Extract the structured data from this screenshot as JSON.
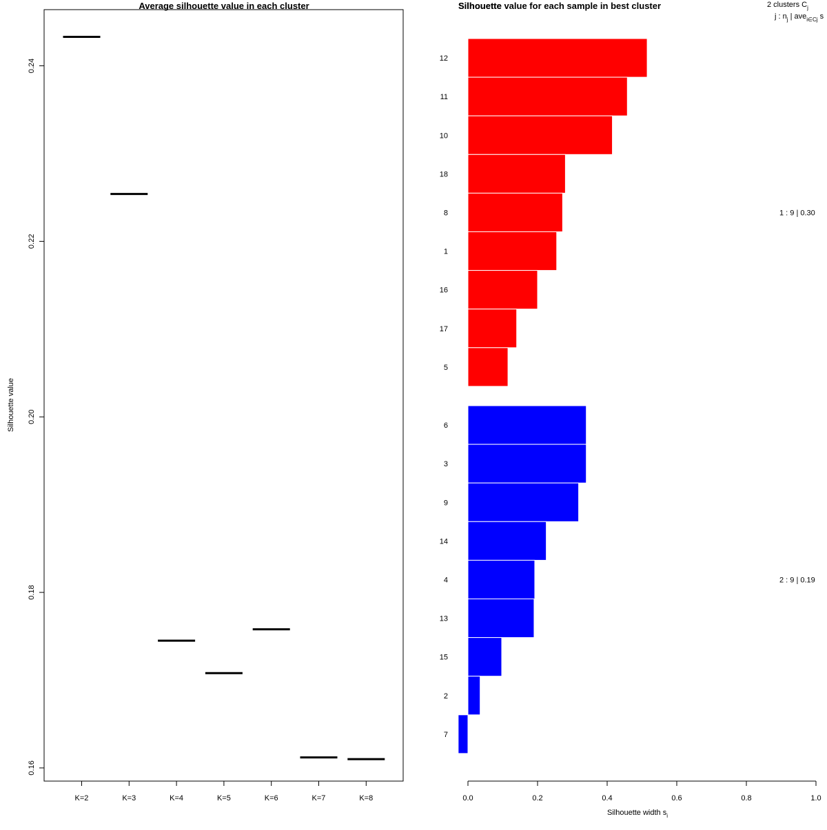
{
  "chart_data": [
    {
      "type": "line",
      "title": "Average silhouette value in each cluster",
      "xlabel": "",
      "ylabel": "Silhouette value",
      "categories": [
        "K=2",
        "K=3",
        "K=4",
        "K=5",
        "K=6",
        "K=7",
        "K=8"
      ],
      "values": [
        0.2433,
        0.2254,
        0.1745,
        0.1708,
        0.1758,
        0.1612,
        0.161
      ],
      "yticks": [
        0.16,
        0.18,
        0.2,
        0.22,
        0.24
      ],
      "ytick_labels": [
        "0.16",
        "0.18",
        "0.20",
        "0.22",
        "0.24"
      ],
      "ylim": [
        0.1585,
        0.2464
      ],
      "grid": false
    },
    {
      "type": "bar",
      "orientation": "horizontal",
      "title": "Silhouette value for each sample in best cluster",
      "overlapped_title": "Silhouette",
      "xlabel": "Silhouette width s",
      "xlabel_sub": "i",
      "xlim": [
        0,
        1
      ],
      "xticks": [
        0,
        0.2,
        0.4,
        0.6,
        0.8,
        1
      ],
      "xtick_labels": [
        "0.0",
        "0.2",
        "0.4",
        "0.6",
        "0.8",
        "1.0"
      ],
      "header": {
        "line1": "2  clusters  C",
        "line1_sub": "j",
        "line2_a": "j :  n",
        "line2_sub1": "j",
        "line2_b": " | ave",
        "line2_sub2": "i∈Cj",
        "line2_c": "  s"
      },
      "clusters": [
        {
          "id": 1,
          "color": "#ff0000",
          "label": "1 :  9  |  0.30",
          "samples": [
            "12",
            "11",
            "10",
            "18",
            "8",
            "1",
            "16",
            "17",
            "5"
          ],
          "values": [
            0.515,
            0.458,
            0.415,
            0.28,
            0.272,
            0.255,
            0.2,
            0.14,
            0.115
          ]
        },
        {
          "id": 2,
          "color": "#0000ff",
          "label": "2 :  9  |  0.19",
          "samples": [
            "6",
            "3",
            "9",
            "14",
            "4",
            "13",
            "15",
            "2",
            "7"
          ],
          "values": [
            0.34,
            0.34,
            0.318,
            0.225,
            0.192,
            0.19,
            0.097,
            0.035,
            -0.028
          ]
        }
      ]
    }
  ]
}
